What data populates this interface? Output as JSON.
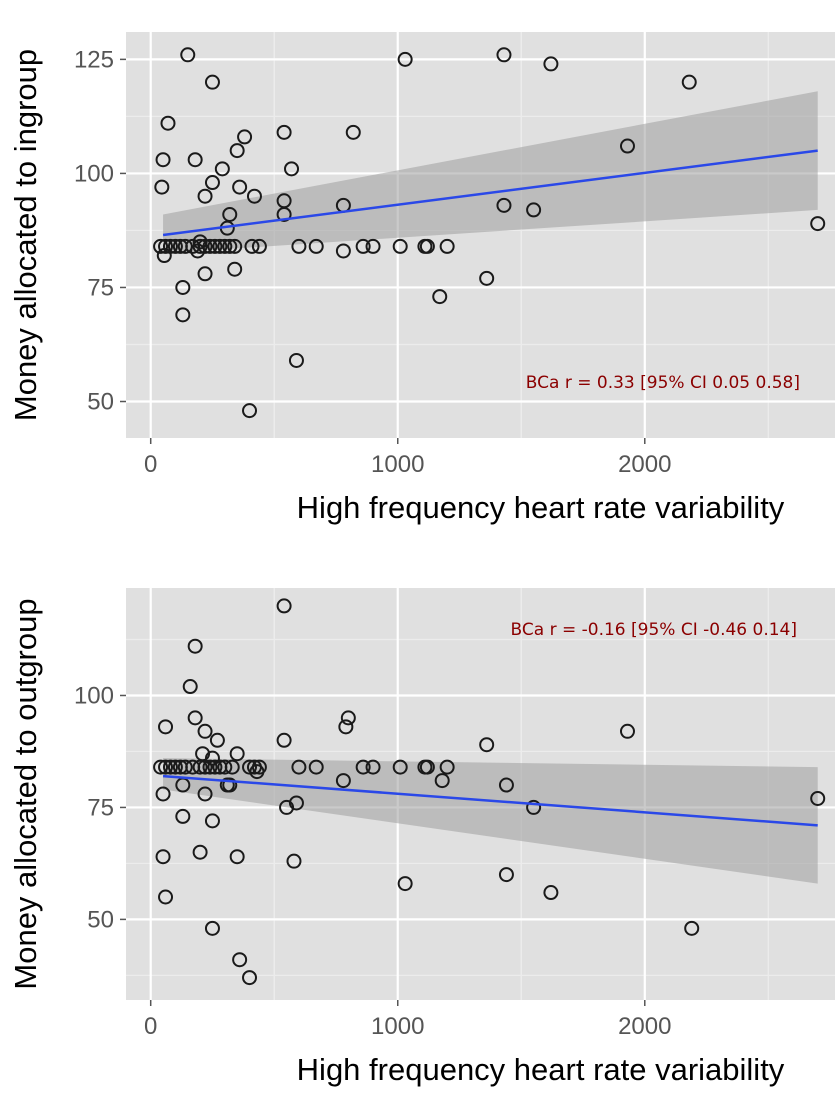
{
  "colors": {
    "panel_bg": "#e0e0e0",
    "grid_major": "#ffffff",
    "grid_minor": "#ececec",
    "fit_line": "#2a48e8",
    "confidence_band": "#9e9e9e",
    "point_stroke": "#1a1a1a",
    "annotation": "#8b0000"
  },
  "chart_data": [
    {
      "type": "scatter",
      "xlabel": "High frequency heart rate variability",
      "ylabel": "Money allocated to ingroup",
      "annotation": "BCa r = 0.33 [95% CI 0.05 0.58]",
      "annotation_position": "bottom-right",
      "xlim": [
        -100,
        2770
      ],
      "ylim": [
        42,
        131
      ],
      "xticks": [
        0,
        1000,
        2000
      ],
      "xtick_labels": [
        "0",
        "1000",
        "2000"
      ],
      "yticks": [
        50,
        75,
        100,
        125
      ],
      "ytick_labels": [
        "50",
        "75",
        "100",
        "125"
      ],
      "grid": true,
      "fit": {
        "x": [
          50,
          2700
        ],
        "y": [
          86.5,
          105
        ],
        "ci_lower": [
          82.5,
          92
        ],
        "ci_upper": [
          91,
          118
        ]
      },
      "points": [
        [
          150,
          126
        ],
        [
          250,
          120
        ],
        [
          1030,
          125
        ],
        [
          1430,
          126
        ],
        [
          1620,
          124
        ],
        [
          2180,
          120
        ],
        [
          70,
          111
        ],
        [
          380,
          108
        ],
        [
          540,
          109
        ],
        [
          820,
          109
        ],
        [
          350,
          105
        ],
        [
          1930,
          106
        ],
        [
          50,
          103
        ],
        [
          180,
          103
        ],
        [
          290,
          101
        ],
        [
          570,
          101
        ],
        [
          45,
          97
        ],
        [
          250,
          98
        ],
        [
          360,
          97
        ],
        [
          220,
          95
        ],
        [
          420,
          95
        ],
        [
          540,
          94
        ],
        [
          780,
          93
        ],
        [
          1430,
          93
        ],
        [
          1550,
          92
        ],
        [
          320,
          91
        ],
        [
          540,
          91
        ],
        [
          2700,
          89
        ],
        [
          310,
          88
        ],
        [
          40,
          84
        ],
        [
          60,
          84
        ],
        [
          80,
          84
        ],
        [
          100,
          84
        ],
        [
          120,
          84
        ],
        [
          140,
          84
        ],
        [
          170,
          84
        ],
        [
          200,
          84
        ],
        [
          220,
          84
        ],
        [
          240,
          84
        ],
        [
          260,
          84
        ],
        [
          280,
          84
        ],
        [
          300,
          84
        ],
        [
          320,
          84
        ],
        [
          340,
          84
        ],
        [
          410,
          84
        ],
        [
          440,
          84
        ],
        [
          600,
          84
        ],
        [
          670,
          84
        ],
        [
          860,
          84
        ],
        [
          900,
          84
        ],
        [
          1010,
          84
        ],
        [
          1110,
          84
        ],
        [
          1120,
          84
        ],
        [
          1200,
          84
        ],
        [
          200,
          85
        ],
        [
          190,
          83
        ],
        [
          55,
          82
        ],
        [
          780,
          83
        ],
        [
          220,
          78
        ],
        [
          340,
          79
        ],
        [
          1360,
          77
        ],
        [
          130,
          75
        ],
        [
          1170,
          73
        ],
        [
          130,
          69
        ],
        [
          590,
          59
        ],
        [
          400,
          48
        ]
      ]
    },
    {
      "type": "scatter",
      "xlabel": "High frequency heart rate variability",
      "ylabel": "Money allocated to outgroup",
      "annotation": "BCa r = -0.16 [95% CI -0.46 0.14]",
      "annotation_position": "top-right",
      "xlim": [
        -100,
        2770
      ],
      "ylim": [
        32,
        124
      ],
      "xticks": [
        0,
        1000,
        2000
      ],
      "xtick_labels": [
        "0",
        "1000",
        "2000"
      ],
      "yticks": [
        50,
        75,
        100
      ],
      "ytick_labels": [
        "50",
        "75",
        "100"
      ],
      "grid": true,
      "fit": {
        "x": [
          50,
          2700
        ],
        "y": [
          82,
          71
        ],
        "ci_lower": [
          79,
          58
        ],
        "ci_upper": [
          86,
          84
        ]
      },
      "points": [
        [
          540,
          120
        ],
        [
          180,
          111
        ],
        [
          160,
          102
        ],
        [
          800,
          95
        ],
        [
          180,
          95
        ],
        [
          60,
          93
        ],
        [
          790,
          93
        ],
        [
          1930,
          92
        ],
        [
          220,
          92
        ],
        [
          270,
          90
        ],
        [
          540,
          90
        ],
        [
          1360,
          89
        ],
        [
          350,
          87
        ],
        [
          210,
          87
        ],
        [
          250,
          86
        ],
        [
          40,
          84
        ],
        [
          60,
          84
        ],
        [
          80,
          84
        ],
        [
          100,
          84
        ],
        [
          120,
          84
        ],
        [
          140,
          84
        ],
        [
          170,
          84
        ],
        [
          200,
          84
        ],
        [
          220,
          84
        ],
        [
          240,
          84
        ],
        [
          260,
          84
        ],
        [
          280,
          84
        ],
        [
          300,
          84
        ],
        [
          330,
          84
        ],
        [
          400,
          84
        ],
        [
          420,
          84
        ],
        [
          440,
          84
        ],
        [
          600,
          84
        ],
        [
          670,
          84
        ],
        [
          860,
          84
        ],
        [
          900,
          84
        ],
        [
          1010,
          84
        ],
        [
          1110,
          84
        ],
        [
          1120,
          84
        ],
        [
          1200,
          84
        ],
        [
          430,
          83
        ],
        [
          780,
          81
        ],
        [
          1180,
          81
        ],
        [
          130,
          80
        ],
        [
          310,
          80
        ],
        [
          320,
          80
        ],
        [
          1440,
          80
        ],
        [
          50,
          78
        ],
        [
          220,
          78
        ],
        [
          2700,
          77
        ],
        [
          590,
          76
        ],
        [
          550,
          75
        ],
        [
          1550,
          75
        ],
        [
          130,
          73
        ],
        [
          250,
          72
        ],
        [
          200,
          65
        ],
        [
          50,
          64
        ],
        [
          350,
          64
        ],
        [
          580,
          63
        ],
        [
          1440,
          60
        ],
        [
          1030,
          58
        ],
        [
          1620,
          56
        ],
        [
          60,
          55
        ],
        [
          250,
          48
        ],
        [
          2190,
          48
        ],
        [
          360,
          41
        ],
        [
          400,
          37
        ]
      ]
    }
  ]
}
